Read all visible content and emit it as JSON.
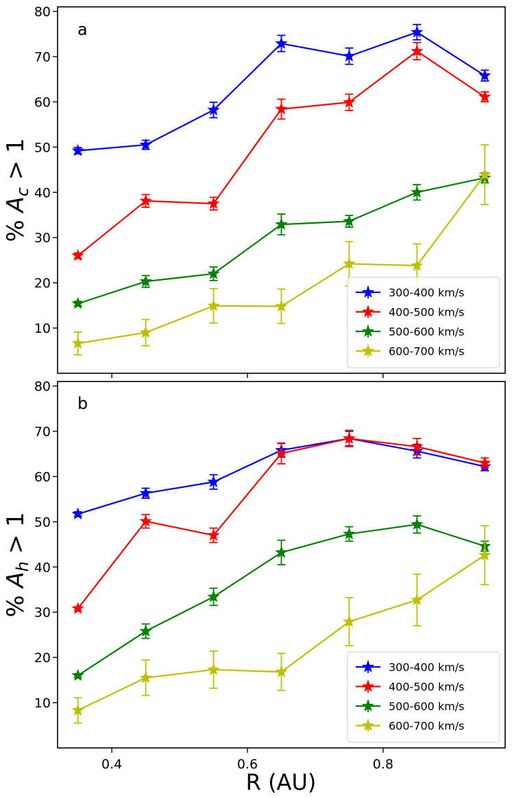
{
  "figure": {
    "xlabel": "R (AU)",
    "shared_x": true
  },
  "chart_data": [
    {
      "type": "line",
      "panel_label": "a",
      "title": "",
      "xlabel": "",
      "ylabel_prefix": "% ",
      "ylabel_symbol": "A",
      "ylabel_subscript": "c",
      "ylabel_suffix": " > 1",
      "xlim": [
        0.32,
        0.98
      ],
      "ylim": [
        0,
        81
      ],
      "xticks": [
        0.4,
        0.6,
        0.8
      ],
      "xtick_labels_visible": false,
      "yticks": [
        10,
        20,
        30,
        40,
        50,
        60,
        70,
        80
      ],
      "grid": false,
      "legend_position": "lower-right",
      "x": [
        0.35,
        0.45,
        0.55,
        0.65,
        0.75,
        0.85,
        0.95
      ],
      "series": [
        {
          "name": "300-400 km/s",
          "color": "#0000ff",
          "values": [
            49.2,
            50.5,
            58.2,
            72.9,
            70.1,
            75.4,
            65.8
          ],
          "errors": [
            0.7,
            1.0,
            1.7,
            1.8,
            1.8,
            1.7,
            1.2
          ]
        },
        {
          "name": "400-500 km/s",
          "color": "#ff0000",
          "values": [
            26.0,
            38.1,
            37.5,
            58.4,
            59.9,
            71.2,
            61.1
          ],
          "errors": [
            0.6,
            1.4,
            1.4,
            2.2,
            1.8,
            1.9,
            1.1
          ]
        },
        {
          "name": "500-600 km/s",
          "color": "#008000",
          "values": [
            15.4,
            20.3,
            22.0,
            32.9,
            33.6,
            40.0,
            43.2
          ],
          "errors": [
            0.5,
            1.3,
            1.5,
            2.3,
            1.3,
            1.7,
            1.1
          ]
        },
        {
          "name": "600-700 km/s",
          "color": "#bfbf00",
          "values": [
            6.6,
            9.0,
            14.9,
            14.8,
            24.2,
            23.8,
            43.9
          ],
          "errors": [
            2.5,
            2.9,
            3.8,
            3.8,
            4.9,
            4.8,
            6.6
          ]
        }
      ]
    },
    {
      "type": "line",
      "panel_label": "b",
      "title": "",
      "xlabel": "R (AU)",
      "ylabel_prefix": "% ",
      "ylabel_symbol": "A",
      "ylabel_subscript": "h",
      "ylabel_suffix": " > 1",
      "xlim": [
        0.32,
        0.98
      ],
      "ylim": [
        0,
        81
      ],
      "xticks": [
        0.4,
        0.6,
        0.8
      ],
      "xtick_labels_visible": true,
      "yticks": [
        10,
        20,
        30,
        40,
        50,
        60,
        70,
        80
      ],
      "grid": false,
      "legend_position": "lower-right",
      "x": [
        0.35,
        0.45,
        0.55,
        0.65,
        0.75,
        0.85,
        0.95
      ],
      "series": [
        {
          "name": "300-400 km/s",
          "color": "#0000ff",
          "values": [
            51.7,
            56.3,
            58.8,
            65.8,
            68.4,
            65.6,
            62.2
          ],
          "errors": [
            0.5,
            1.1,
            1.6,
            1.5,
            1.6,
            1.5,
            0.9
          ]
        },
        {
          "name": "400-500 km/s",
          "color": "#ff0000",
          "values": [
            30.8,
            50.1,
            47.0,
            65.1,
            68.4,
            66.6,
            63.0
          ],
          "errors": [
            0.4,
            1.5,
            1.6,
            2.3,
            1.8,
            1.8,
            1.1
          ]
        },
        {
          "name": "500-600 km/s",
          "color": "#008000",
          "values": [
            16.0,
            25.8,
            33.4,
            43.2,
            47.3,
            49.4,
            44.6
          ],
          "errors": [
            0.4,
            1.6,
            1.9,
            2.7,
            1.6,
            1.9,
            1.1
          ]
        },
        {
          "name": "600-700 km/s",
          "color": "#bfbf00",
          "values": [
            8.3,
            15.5,
            17.3,
            16.8,
            27.9,
            32.7,
            42.6
          ],
          "errors": [
            2.8,
            3.9,
            4.1,
            4.1,
            5.3,
            5.7,
            6.5
          ]
        }
      ]
    }
  ]
}
